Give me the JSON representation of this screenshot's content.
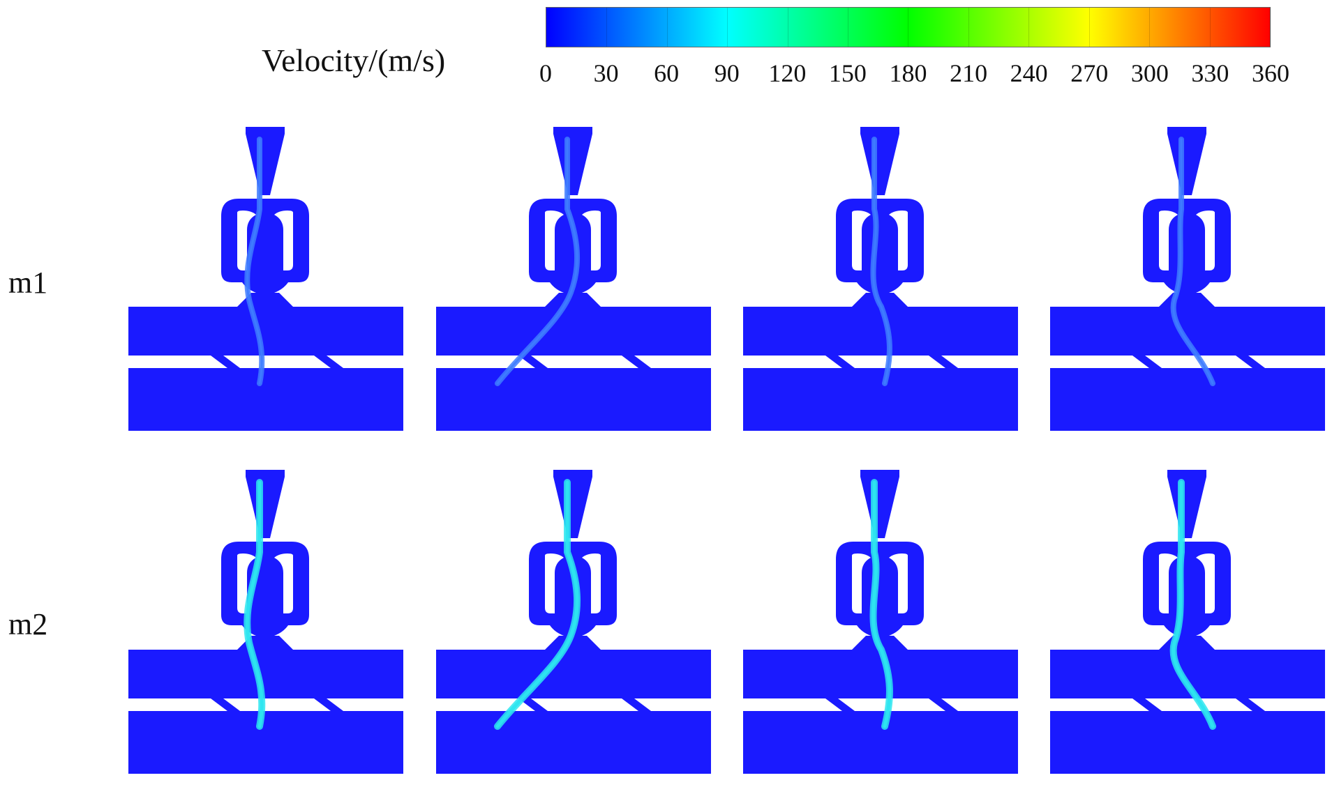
{
  "legend": {
    "title": "Velocity/(m/s)",
    "ticks": [
      "0",
      "30",
      "60",
      "90",
      "120",
      "150",
      "180",
      "210",
      "240",
      "270",
      "300",
      "330",
      "360"
    ],
    "colors": [
      "#0000ff",
      "#0055ff",
      "#00aaff",
      "#00ffff",
      "#00ffaa",
      "#00ff55",
      "#00ff00",
      "#55ff00",
      "#aaff00",
      "#ffff00",
      "#ffaa00",
      "#ff5500",
      "#ff0000"
    ]
  },
  "rows": [
    {
      "label": "m1"
    },
    {
      "label": "m2"
    }
  ],
  "palette": {
    "domain": "#1a1aff",
    "background": "#ffffff",
    "jet_m1": "#3f7dff",
    "jet_m2": "#2ee6f0"
  }
}
